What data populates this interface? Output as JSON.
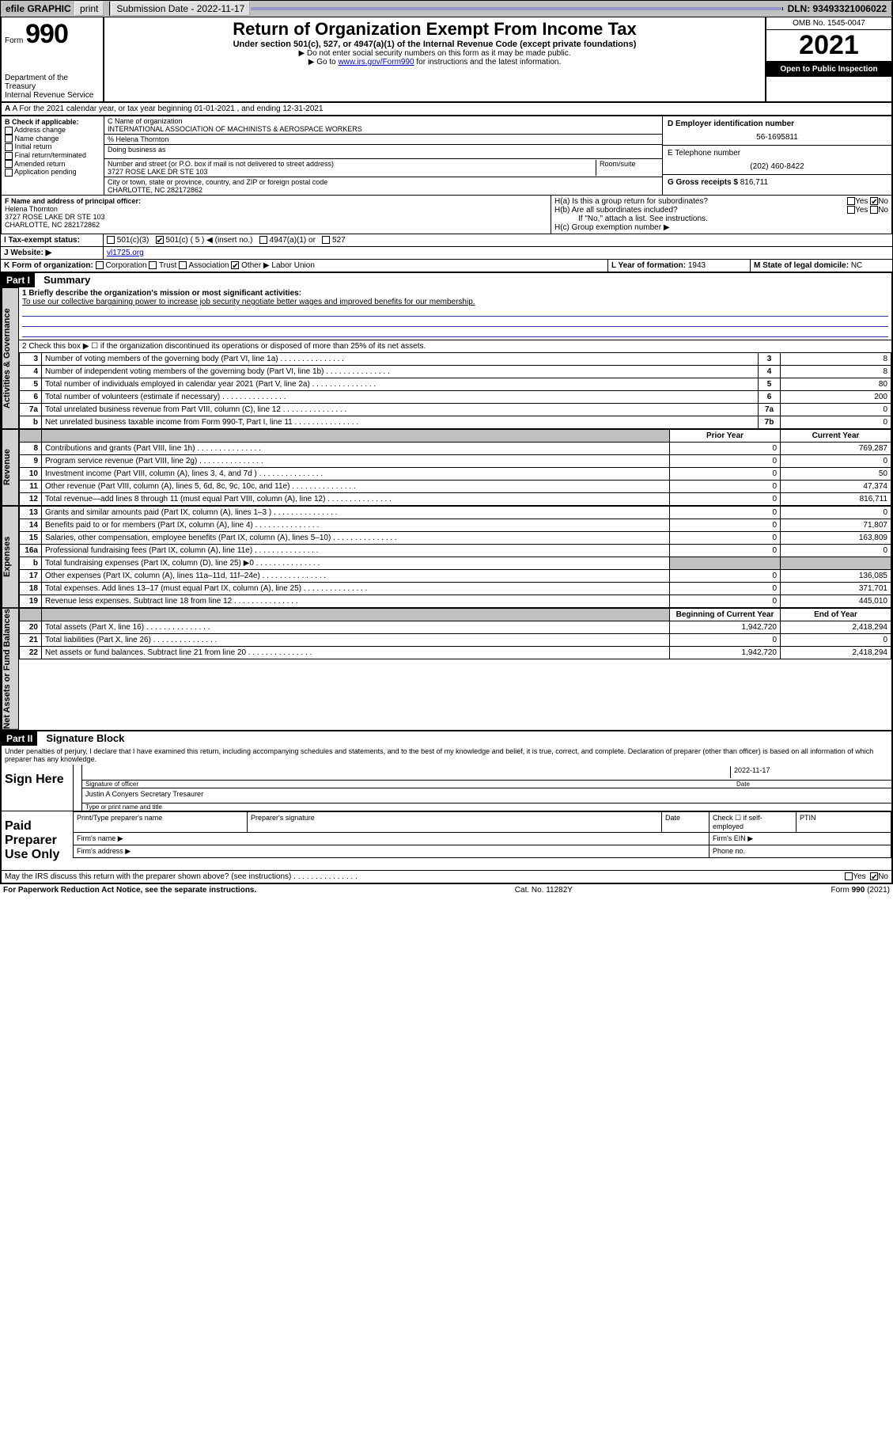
{
  "topbar": {
    "efile": "efile GRAPHIC",
    "print": "print",
    "submission_label": "Submission Date - 2022-11-17",
    "dln_label": "DLN: 93493321006022"
  },
  "header": {
    "form_word": "Form",
    "form_num": "990",
    "dept": "Department of the Treasury",
    "irs": "Internal Revenue Service",
    "title": "Return of Organization Exempt From Income Tax",
    "subtitle": "Under section 501(c), 527, or 4947(a)(1) of the Internal Revenue Code (except private foundations)",
    "note1": "▶ Do not enter social security numbers on this form as it may be made public.",
    "note2_pre": "▶ Go to ",
    "note2_link": "www.irs.gov/Form990",
    "note2_post": " for instructions and the latest information.",
    "omb": "OMB No. 1545-0047",
    "year": "2021",
    "open": "Open to Public Inspection"
  },
  "rowA": {
    "text": "A For the 2021 calendar year, or tax year beginning 01-01-2021   , and ending 12-31-2021"
  },
  "boxB": {
    "title": "B Check if applicable:",
    "items": [
      "Address change",
      "Name change",
      "Initial return",
      "Final return/terminated",
      "Amended return",
      "Application pending"
    ]
  },
  "boxC": {
    "label_name": "C Name of organization",
    "name": "INTERNATIONAL ASSOCIATION OF MACHINISTS & AEROSPACE WORKERS",
    "care_of_label": "% Helena Thornton",
    "dba_label": "Doing business as",
    "street_label": "Number and street (or P.O. box if mail is not delivered to street address)",
    "room_label": "Room/suite",
    "street": "3727 ROSE LAKE DR STE 103",
    "city_label": "City or town, state or province, country, and ZIP or foreign postal code",
    "city": "CHARLOTTE, NC  282172862"
  },
  "boxD": {
    "label": "D Employer identification number",
    "value": "56-1695811"
  },
  "boxE": {
    "label": "E Telephone number",
    "value": "(202) 460-8422"
  },
  "boxG": {
    "label": "G Gross receipts $",
    "value": "816,711"
  },
  "boxF": {
    "label": "F Name and address of principal officer:",
    "name": "Helena Thornton",
    "addr1": "3727 ROSE LAKE DR STE 103",
    "addr2": "CHARLOTTE, NC  282172862"
  },
  "boxH": {
    "ha": "H(a)  Is this a group return for subordinates?",
    "hb": "H(b)  Are all subordinates included?",
    "hb_note": "If \"No,\" attach a list. See instructions.",
    "hc": "H(c)  Group exemption number ▶",
    "yes": "Yes",
    "no": "No"
  },
  "rowI": {
    "label": "I   Tax-exempt status:",
    "opts": [
      "501(c)(3)",
      "501(c) ( 5 ) ◀ (insert no.)",
      "4947(a)(1) or",
      "527"
    ],
    "checked_index": 1
  },
  "rowJ": {
    "label": "J   Website: ▶",
    "value": "vl1725.org"
  },
  "rowK": {
    "label": "K Form of organization:",
    "opts": [
      "Corporation",
      "Trust",
      "Association",
      "Other ▶"
    ],
    "checked_index": 3,
    "other_text": "Labor Union"
  },
  "rowL": {
    "label": "L Year of formation:",
    "value": "1943"
  },
  "rowM": {
    "label": "M State of legal domicile:",
    "value": "NC"
  },
  "part1": {
    "bar": "Part I",
    "title": "Summary"
  },
  "summary": {
    "q1_label": "1   Briefly describe the organization's mission or most significant activities:",
    "q1_text": "To use our collective bargaining power to increase job security negotiate better wages and improved benefits for our membership.",
    "q2_label": "2   Check this box ▶ ☐  if the organization discontinued its operations or disposed of more than 25% of its net assets.",
    "lines_gov": [
      {
        "n": "3",
        "d": "Number of voting members of the governing body (Part VI, line 1a)",
        "b": "3",
        "v": "8"
      },
      {
        "n": "4",
        "d": "Number of independent voting members of the governing body (Part VI, line 1b)",
        "b": "4",
        "v": "8"
      },
      {
        "n": "5",
        "d": "Total number of individuals employed in calendar year 2021 (Part V, line 2a)",
        "b": "5",
        "v": "80"
      },
      {
        "n": "6",
        "d": "Total number of volunteers (estimate if necessary)",
        "b": "6",
        "v": "200"
      },
      {
        "n": "7a",
        "d": "Total unrelated business revenue from Part VIII, column (C), line 12",
        "b": "7a",
        "v": "0"
      },
      {
        "n": "b",
        "d": "Net unrelated business taxable income from Form 990-T, Part I, line 11",
        "b": "7b",
        "v": "0"
      }
    ],
    "col_prior": "Prior Year",
    "col_current": "Current Year",
    "col_beg": "Beginning of Current Year",
    "col_end": "End of Year",
    "lines_rev": [
      {
        "n": "8",
        "d": "Contributions and grants (Part VIII, line 1h)",
        "p": "0",
        "c": "769,287"
      },
      {
        "n": "9",
        "d": "Program service revenue (Part VIII, line 2g)",
        "p": "0",
        "c": "0"
      },
      {
        "n": "10",
        "d": "Investment income (Part VIII, column (A), lines 3, 4, and 7d )",
        "p": "0",
        "c": "50"
      },
      {
        "n": "11",
        "d": "Other revenue (Part VIII, column (A), lines 5, 6d, 8c, 9c, 10c, and 11e)",
        "p": "0",
        "c": "47,374"
      },
      {
        "n": "12",
        "d": "Total revenue—add lines 8 through 11 (must equal Part VIII, column (A), line 12)",
        "p": "0",
        "c": "816,711"
      }
    ],
    "lines_exp": [
      {
        "n": "13",
        "d": "Grants and similar amounts paid (Part IX, column (A), lines 1–3 )",
        "p": "0",
        "c": "0"
      },
      {
        "n": "14",
        "d": "Benefits paid to or for members (Part IX, column (A), line 4)",
        "p": "0",
        "c": "71,807"
      },
      {
        "n": "15",
        "d": "Salaries, other compensation, employee benefits (Part IX, column (A), lines 5–10)",
        "p": "0",
        "c": "163,809"
      },
      {
        "n": "16a",
        "d": "Professional fundraising fees (Part IX, column (A), line 11e)",
        "p": "0",
        "c": "0"
      },
      {
        "n": "b",
        "d": "Total fundraising expenses (Part IX, column (D), line 25) ▶0",
        "p": "",
        "c": "",
        "grey": true
      },
      {
        "n": "17",
        "d": "Other expenses (Part IX, column (A), lines 11a–11d, 11f–24e)",
        "p": "0",
        "c": "136,085"
      },
      {
        "n": "18",
        "d": "Total expenses. Add lines 13–17 (must equal Part IX, column (A), line 25)",
        "p": "0",
        "c": "371,701"
      },
      {
        "n": "19",
        "d": "Revenue less expenses. Subtract line 18 from line 12",
        "p": "0",
        "c": "445,010"
      }
    ],
    "lines_net": [
      {
        "n": "20",
        "d": "Total assets (Part X, line 16)",
        "p": "1,942,720",
        "c": "2,418,294"
      },
      {
        "n": "21",
        "d": "Total liabilities (Part X, line 26)",
        "p": "0",
        "c": "0"
      },
      {
        "n": "22",
        "d": "Net assets or fund balances. Subtract line 21 from line 20",
        "p": "1,942,720",
        "c": "2,418,294"
      }
    ],
    "tabs": {
      "gov": "Activities & Governance",
      "rev": "Revenue",
      "exp": "Expenses",
      "net": "Net Assets or Fund Balances"
    }
  },
  "part2": {
    "bar": "Part II",
    "title": "Signature Block"
  },
  "sig": {
    "penalties": "Under penalties of perjury, I declare that I have examined this return, including accompanying schedules and statements, and to the best of my knowledge and belief, it is true, correct, and complete. Declaration of preparer (other than officer) is based on all information of which preparer has any knowledge.",
    "sign_here": "Sign Here",
    "sig_officer": "Signature of officer",
    "date": "Date",
    "date_val": "2022-11-17",
    "name_title": "Justin A Conyers  Secretary Tresaurer",
    "name_title_label": "Type or print name and title",
    "paid": "Paid Preparer Use Only",
    "prep_name": "Print/Type preparer's name",
    "prep_sig": "Preparer's signature",
    "prep_date": "Date",
    "check_self": "Check ☐ if self-employed",
    "ptin": "PTIN",
    "firm_name": "Firm's name    ▶",
    "firm_ein": "Firm's EIN ▶",
    "firm_addr": "Firm's address ▶",
    "phone": "Phone no.",
    "may_irs": "May the IRS discuss this return with the preparer shown above? (see instructions)"
  },
  "footer": {
    "left": "For Paperwork Reduction Act Notice, see the separate instructions.",
    "mid": "Cat. No. 11282Y",
    "right": "Form 990 (2021)"
  }
}
